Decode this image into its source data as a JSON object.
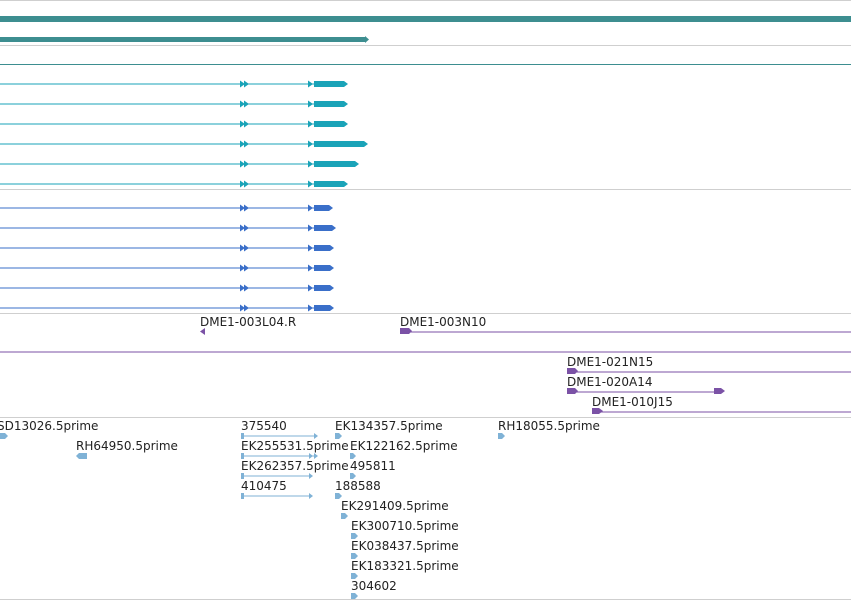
{
  "colors": {
    "divider": "#cfcfcf",
    "gene_track": "#3d8e90",
    "transcript_cyan": "#1aa3b8",
    "transcript_blue": "#3a6fc9",
    "clone": "#7b52a6",
    "est": "#7fb2d6"
  },
  "clone_labels": {
    "c1": "DME1-003L04.R",
    "c2": "DME1-003N10",
    "c3": "DME1-021N15",
    "c4": "DME1-020A14",
    "c5": "DME1-010J15"
  },
  "est_labels": {
    "e1": "SD13026.5prime",
    "e2": "RH64950.5prime",
    "e3": "375540",
    "e4": "EK255531.5prime",
    "e5": "EK262357.5prime",
    "e6": "410475",
    "e7": "EK134357.5prime",
    "e8": "EK122162.5prime",
    "e9": "495811",
    "e10": "188588",
    "e11": "EK291409.5prime",
    "e12": "EK300710.5prime",
    "e13": "EK038437.5prime",
    "e14": "EK183321.5prime",
    "e15": "304602",
    "e16": "RH18055.5prime"
  }
}
